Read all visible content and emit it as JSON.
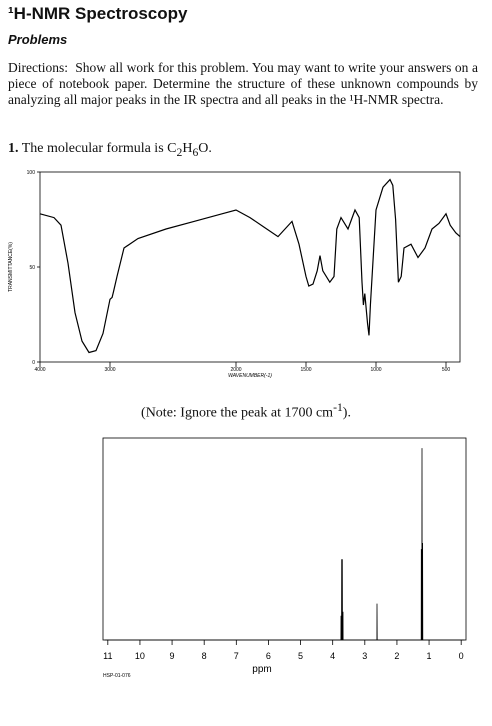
{
  "header": {
    "title": "¹H-NMR Spectroscopy",
    "subtitle": "Problems"
  },
  "directions": {
    "label": "Directions:",
    "text": "Show all work for this problem. You may want to write your answers on a piece of notebook paper. Determine the structure of these unknown compounds by analyzing all major peaks in the IR spectra and all peaks in the ¹H-NMR spectra."
  },
  "problem": {
    "number": "1.",
    "text": "The molecular formula is",
    "formula": [
      "C",
      "2",
      "H",
      "6",
      "O."
    ]
  },
  "note": {
    "text": "(Note: Ignore the peak at 1700 cm",
    "sup": "-1",
    "end": ")."
  },
  "nmr_id": "HSP-01-076",
  "chart_data": [
    {
      "type": "line",
      "ylabel": "TRANSMITTANCE(%)",
      "xlabel": "WAVENUMBER(-1)",
      "x": [
        4000,
        3800,
        3700,
        3600,
        3500,
        3400,
        3300,
        3200,
        3100,
        3000,
        2970,
        2950,
        2900,
        2800,
        2700,
        2500,
        2300,
        2100,
        2000,
        1900,
        1800,
        1700,
        1600,
        1550,
        1500,
        1480,
        1450,
        1420,
        1400,
        1380,
        1330,
        1300,
        1280,
        1250,
        1200,
        1150,
        1120,
        1100,
        1090,
        1080,
        1060,
        1050,
        1040,
        1000,
        950,
        900,
        880,
        860,
        840,
        820,
        800,
        750,
        700,
        650,
        600,
        550,
        500,
        470,
        430,
        400
      ],
      "values": [
        78,
        76,
        72,
        52,
        26,
        11,
        5,
        6,
        15,
        33,
        34,
        37,
        45,
        60,
        65,
        70,
        74,
        78,
        80,
        76,
        71,
        66,
        74,
        62,
        45,
        40,
        41,
        48,
        56,
        48,
        42,
        45,
        70,
        76,
        70,
        80,
        76,
        42,
        30,
        36,
        20,
        14,
        30,
        80,
        92,
        96,
        93,
        75,
        42,
        45,
        60,
        62,
        55,
        60,
        70,
        73,
        78,
        72,
        68,
        66
      ],
      "xlim": [
        4000,
        400
      ],
      "ylim": [
        0,
        100
      ],
      "xticks": [
        4000,
        3000,
        2000,
        1500,
        1000,
        500
      ],
      "yticks": [
        0,
        50,
        100
      ],
      "color": "#000000"
    },
    {
      "type": "line",
      "xlabel": "ppm",
      "x": [
        11.1,
        3.76,
        3.745,
        3.74,
        3.735,
        3.725,
        3.72,
        3.715,
        3.705,
        3.7,
        3.695,
        3.685,
        3.68,
        3.675,
        3.66,
        2.64,
        2.625,
        2.62,
        2.615,
        2.6,
        1.26,
        1.245,
        1.24,
        1.235,
        1.225,
        1.22,
        1.215,
        1.205,
        1.2,
        1.195,
        1.18,
        -0.1
      ],
      "values": [
        0,
        0,
        0,
        12,
        0,
        0,
        40,
        0,
        0,
        40,
        0,
        0,
        14,
        0,
        0,
        0,
        0,
        18,
        0,
        0,
        0,
        0,
        45,
        0,
        0,
        95,
        0,
        0,
        48,
        0,
        0,
        0
      ],
      "xlim": [
        11.15,
        -0.15
      ],
      "ylim": [
        0,
        100
      ],
      "xticks": [
        11,
        10,
        9,
        8,
        7,
        6,
        5,
        4,
        3,
        2,
        1,
        0
      ],
      "color": "#000000"
    }
  ]
}
